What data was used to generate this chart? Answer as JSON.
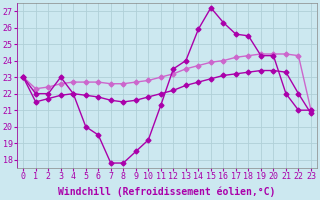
{
  "xlabel": "Windchill (Refroidissement éolien,°C)",
  "bg_color": "#cce8f0",
  "grid_color": "#b0d0d8",
  "line_color1": "#aa00aa",
  "line_color2": "#cc66cc",
  "x_ticks": [
    0,
    1,
    2,
    3,
    4,
    5,
    6,
    7,
    8,
    9,
    10,
    11,
    12,
    13,
    14,
    15,
    16,
    17,
    18,
    19,
    20,
    21,
    22,
    23
  ],
  "y_ticks": [
    18,
    19,
    20,
    21,
    22,
    23,
    24,
    25,
    26,
    27
  ],
  "ylim": [
    17.5,
    27.5
  ],
  "xlim": [
    -0.5,
    23.5
  ],
  "series1_x": [
    0,
    1,
    2,
    3,
    4,
    5,
    6,
    7,
    8,
    9,
    10,
    11,
    12,
    13,
    14,
    15,
    16,
    17,
    18,
    19,
    20,
    21,
    22,
    23
  ],
  "series1_y": [
    23,
    22,
    22,
    23,
    22,
    20,
    19.5,
    17.8,
    17.8,
    18.5,
    19.2,
    21.3,
    23.5,
    24.0,
    25.9,
    27.2,
    26.3,
    25.6,
    25.5,
    24.3,
    24.3,
    22.0,
    21.0,
    21.0
  ],
  "series2_x": [
    0,
    1,
    2,
    3,
    4,
    5,
    6,
    7,
    8,
    9,
    10,
    11,
    12,
    13,
    14,
    15,
    16,
    17,
    18,
    19,
    20,
    21,
    22,
    23
  ],
  "series2_y": [
    23.0,
    22.3,
    22.4,
    22.6,
    22.7,
    22.7,
    22.7,
    22.6,
    22.6,
    22.7,
    22.8,
    23.0,
    23.2,
    23.5,
    23.7,
    23.9,
    24.0,
    24.2,
    24.3,
    24.4,
    24.4,
    24.4,
    24.3,
    21.0
  ],
  "series3_x": [
    0,
    1,
    2,
    3,
    4,
    5,
    6,
    7,
    8,
    9,
    10,
    11,
    12,
    13,
    14,
    15,
    16,
    17,
    18,
    19,
    20,
    21,
    22,
    23
  ],
  "series3_y": [
    23.0,
    21.5,
    21.7,
    21.9,
    22.0,
    21.9,
    21.8,
    21.6,
    21.5,
    21.6,
    21.8,
    22.0,
    22.2,
    22.5,
    22.7,
    22.9,
    23.1,
    23.2,
    23.3,
    23.4,
    23.4,
    23.3,
    22.0,
    20.8
  ],
  "marker": "D",
  "markersize": 2.5,
  "linewidth": 1.0,
  "tick_fontsize": 6,
  "label_fontsize": 7
}
